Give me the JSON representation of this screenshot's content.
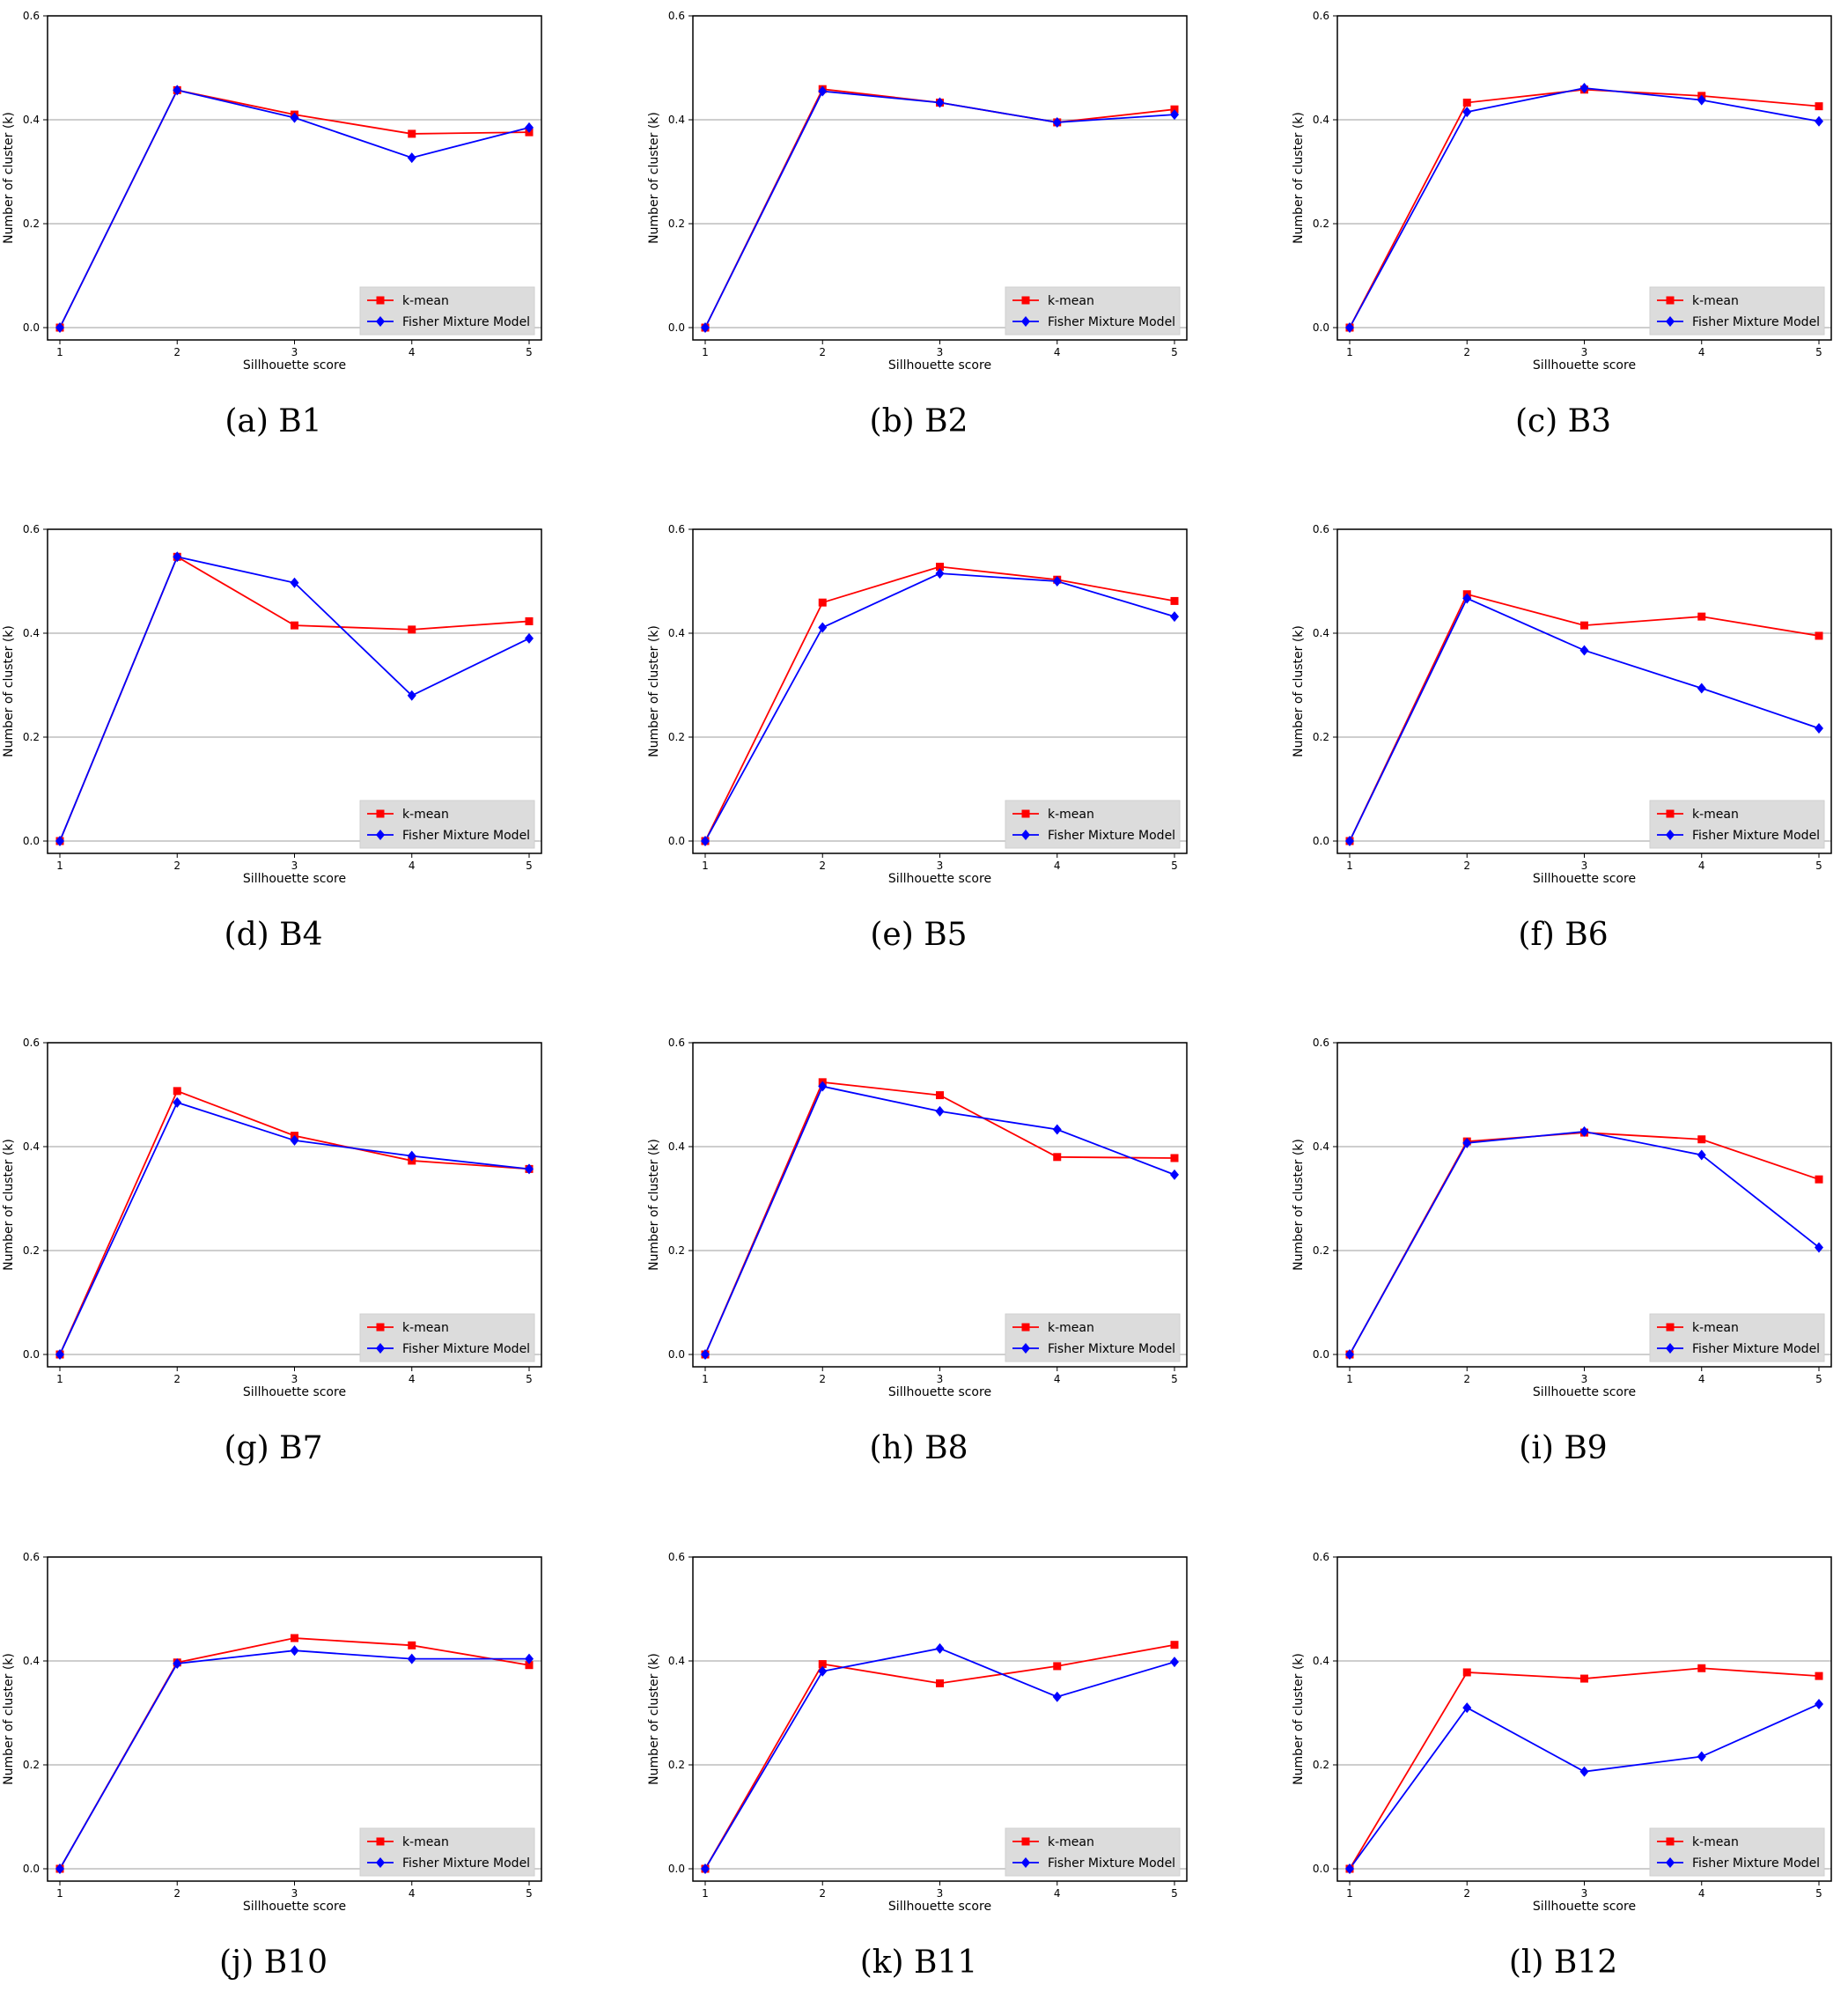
{
  "figure": {
    "colors": {
      "kmean": "#ff0000",
      "fisher": "#0000ff",
      "grid": "#b0b0b0",
      "legend_bg": "#dcdcdc"
    },
    "markers": {
      "kmean": "square",
      "fisher": "diamond"
    }
  },
  "chart_data": [
    {
      "type": "line",
      "caption": "(a) B1",
      "x": [
        1,
        2,
        3,
        4,
        5
      ],
      "xlabel": "Sillhouette score",
      "ylabel": "Number of cluster (k)",
      "ylim": [
        0,
        0.6
      ],
      "yticks": [
        "0.0",
        "0.2",
        "0.4",
        "0.6"
      ],
      "grid": "horizontal",
      "legend": "bottom-right",
      "series": [
        {
          "name": "k-mean",
          "values": [
            0.0,
            0.457,
            0.41,
            0.373,
            0.376
          ]
        },
        {
          "name": "Fisher Mixture Model",
          "values": [
            0.0,
            0.457,
            0.404,
            0.327,
            0.385
          ]
        }
      ]
    },
    {
      "type": "line",
      "caption": "(b) B2",
      "x": [
        1,
        2,
        3,
        4,
        5
      ],
      "xlabel": "Sillhouette score",
      "ylabel": "Number of cluster (k)",
      "ylim": [
        0,
        0.6
      ],
      "yticks": [
        "0.0",
        "0.2",
        "0.4",
        "0.6"
      ],
      "grid": "horizontal",
      "legend": "bottom-right",
      "series": [
        {
          "name": "k-mean",
          "values": [
            0.0,
            0.459,
            0.433,
            0.395,
            0.42
          ]
        },
        {
          "name": "Fisher Mixture Model",
          "values": [
            0.0,
            0.455,
            0.433,
            0.395,
            0.41
          ]
        }
      ]
    },
    {
      "type": "line",
      "caption": "(c) B3",
      "x": [
        1,
        2,
        3,
        4,
        5
      ],
      "xlabel": "Sillhouette score",
      "ylabel": "Number of cluster (k)",
      "ylim": [
        0,
        0.6
      ],
      "yticks": [
        "0.0",
        "0.2",
        "0.4",
        "0.6"
      ],
      "grid": "horizontal",
      "legend": "bottom-right",
      "series": [
        {
          "name": "k-mean",
          "values": [
            0.0,
            0.433,
            0.458,
            0.446,
            0.426
          ]
        },
        {
          "name": "Fisher Mixture Model",
          "values": [
            0.0,
            0.415,
            0.461,
            0.438,
            0.397
          ]
        }
      ]
    },
    {
      "type": "line",
      "caption": "(d) B4",
      "x": [
        1,
        2,
        3,
        4,
        5
      ],
      "xlabel": "Sillhouette score",
      "ylabel": "Number of cluster (k)",
      "ylim": [
        0,
        0.6
      ],
      "yticks": [
        "0.0",
        "0.2",
        "0.4",
        "0.6"
      ],
      "grid": "horizontal",
      "legend": "bottom-right",
      "series": [
        {
          "name": "k-mean",
          "values": [
            0.0,
            0.547,
            0.415,
            0.407,
            0.423
          ]
        },
        {
          "name": "Fisher Mixture Model",
          "values": [
            0.0,
            0.547,
            0.497,
            0.28,
            0.39
          ]
        }
      ]
    },
    {
      "type": "line",
      "caption": "(e) B5",
      "x": [
        1,
        2,
        3,
        4,
        5
      ],
      "xlabel": "Sillhouette score",
      "ylabel": "Number of cluster (k)",
      "ylim": [
        0,
        0.6
      ],
      "yticks": [
        "0.0",
        "0.2",
        "0.4",
        "0.6"
      ],
      "grid": "horizontal",
      "legend": "bottom-right",
      "series": [
        {
          "name": "k-mean",
          "values": [
            0.0,
            0.459,
            0.528,
            0.503,
            0.462
          ]
        },
        {
          "name": "Fisher Mixture Model",
          "values": [
            0.0,
            0.411,
            0.515,
            0.5,
            0.432
          ]
        }
      ]
    },
    {
      "type": "line",
      "caption": "(f) B6",
      "x": [
        1,
        2,
        3,
        4,
        5
      ],
      "xlabel": "Sillhouette score",
      "ylabel": "Number of cluster (k)",
      "ylim": [
        0,
        0.6
      ],
      "yticks": [
        "0.0",
        "0.2",
        "0.4",
        "0.6"
      ],
      "grid": "horizontal",
      "legend": "bottom-right",
      "series": [
        {
          "name": "k-mean",
          "values": [
            0.0,
            0.475,
            0.415,
            0.432,
            0.395
          ]
        },
        {
          "name": "Fisher Mixture Model",
          "values": [
            0.0,
            0.467,
            0.367,
            0.294,
            0.217
          ]
        }
      ]
    },
    {
      "type": "line",
      "caption": "(g) B7",
      "x": [
        1,
        2,
        3,
        4,
        5
      ],
      "xlabel": "Sillhouette score",
      "ylabel": "Number of cluster (k)",
      "ylim": [
        0,
        0.6
      ],
      "yticks": [
        "0.0",
        "0.2",
        "0.4",
        "0.6"
      ],
      "grid": "horizontal",
      "legend": "bottom-right",
      "series": [
        {
          "name": "k-mean",
          "values": [
            0.0,
            0.507,
            0.421,
            0.373,
            0.357
          ]
        },
        {
          "name": "Fisher Mixture Model",
          "values": [
            0.0,
            0.485,
            0.412,
            0.382,
            0.357
          ]
        }
      ]
    },
    {
      "type": "line",
      "caption": "(h) B8",
      "x": [
        1,
        2,
        3,
        4,
        5
      ],
      "xlabel": "Sillhouette score",
      "ylabel": "Number of cluster (k)",
      "ylim": [
        0,
        0.6
      ],
      "yticks": [
        "0.0",
        "0.2",
        "0.4",
        "0.6"
      ],
      "grid": "horizontal",
      "legend": "bottom-right",
      "series": [
        {
          "name": "k-mean",
          "values": [
            0.0,
            0.524,
            0.499,
            0.38,
            0.378
          ]
        },
        {
          "name": "Fisher Mixture Model",
          "values": [
            0.0,
            0.516,
            0.468,
            0.433,
            0.346
          ]
        }
      ]
    },
    {
      "type": "line",
      "caption": "(i) B9",
      "x": [
        1,
        2,
        3,
        4,
        5
      ],
      "xlabel": "Sillhouette score",
      "ylabel": "Number of cluster (k)",
      "ylim": [
        0,
        0.6
      ],
      "yticks": [
        "0.0",
        "0.2",
        "0.4",
        "0.6"
      ],
      "grid": "horizontal",
      "legend": "bottom-right",
      "series": [
        {
          "name": "k-mean",
          "values": [
            0.0,
            0.41,
            0.427,
            0.414,
            0.337
          ]
        },
        {
          "name": "Fisher Mixture Model",
          "values": [
            0.0,
            0.407,
            0.429,
            0.384,
            0.206
          ]
        }
      ]
    },
    {
      "type": "line",
      "caption": "(j) B10",
      "x": [
        1,
        2,
        3,
        4,
        5
      ],
      "xlabel": "Sillhouette score",
      "ylabel": "Number of cluster (k)",
      "ylim": [
        0,
        0.6
      ],
      "yticks": [
        "0.0",
        "0.2",
        "0.4",
        "0.6"
      ],
      "grid": "horizontal",
      "legend": "bottom-right",
      "series": [
        {
          "name": "k-mean",
          "values": [
            0.0,
            0.397,
            0.444,
            0.43,
            0.392
          ]
        },
        {
          "name": "Fisher Mixture Model",
          "values": [
            0.0,
            0.395,
            0.42,
            0.404,
            0.404
          ]
        }
      ]
    },
    {
      "type": "line",
      "caption": "(k) B11",
      "x": [
        1,
        2,
        3,
        4,
        5
      ],
      "xlabel": "Sillhouette score",
      "ylabel": "Number of cluster (k)",
      "ylim": [
        0,
        0.6
      ],
      "yticks": [
        "0.0",
        "0.2",
        "0.4",
        "0.6"
      ],
      "grid": "horizontal",
      "legend": "bottom-right",
      "series": [
        {
          "name": "k-mean",
          "values": [
            0.0,
            0.394,
            0.357,
            0.39,
            0.431
          ]
        },
        {
          "name": "Fisher Mixture Model",
          "values": [
            0.0,
            0.38,
            0.424,
            0.331,
            0.398
          ]
        }
      ]
    },
    {
      "type": "line",
      "caption": "(l) B12",
      "x": [
        1,
        2,
        3,
        4,
        5
      ],
      "xlabel": "Sillhouette score",
      "ylabel": "Number of cluster (k)",
      "ylim": [
        0,
        0.6
      ],
      "yticks": [
        "0.0",
        "0.2",
        "0.4",
        "0.6"
      ],
      "grid": "horizontal",
      "legend": "bottom-right",
      "series": [
        {
          "name": "k-mean",
          "values": [
            0.0,
            0.378,
            0.366,
            0.386,
            0.371
          ]
        },
        {
          "name": "Fisher Mixture Model",
          "values": [
            0.0,
            0.31,
            0.187,
            0.216,
            0.317
          ]
        }
      ]
    }
  ]
}
